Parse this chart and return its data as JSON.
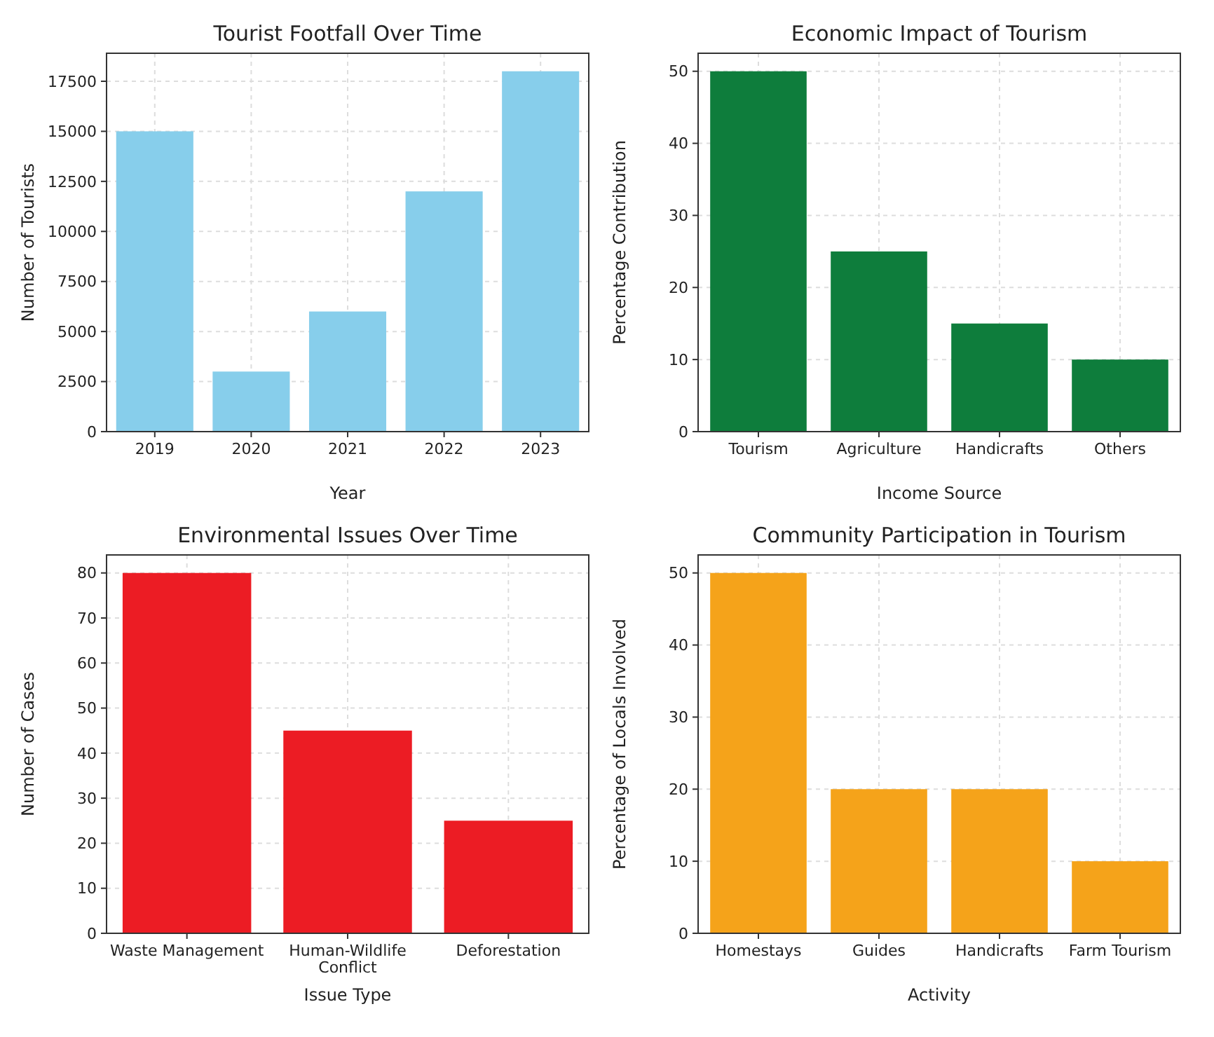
{
  "chart_data": [
    {
      "type": "bar",
      "title": "Tourist Footfall Over Time",
      "xlabel": "Year",
      "ylabel": "Number of Tourists",
      "categories": [
        "2019",
        "2020",
        "2021",
        "2022",
        "2023"
      ],
      "values": [
        15000,
        3000,
        6000,
        12000,
        18000
      ],
      "color": "#87ceeb",
      "ylim": [
        0,
        18900
      ],
      "yticks": [
        0,
        2500,
        5000,
        7500,
        10000,
        12500,
        15000,
        17500
      ],
      "grid": true
    },
    {
      "type": "bar",
      "title": "Economic Impact of Tourism",
      "xlabel": "Income Source",
      "ylabel": "Percentage Contribution",
      "categories": [
        "Tourism",
        "Agriculture",
        "Handicrafts",
        "Others"
      ],
      "values": [
        50,
        25,
        15,
        10
      ],
      "color": "#0e7d3c",
      "ylim": [
        0,
        52.5
      ],
      "yticks": [
        0,
        10,
        20,
        30,
        40,
        50
      ],
      "grid": true
    },
    {
      "type": "bar",
      "title": "Environmental Issues Over Time",
      "xlabel": "Issue Type",
      "ylabel": "Number of Cases",
      "categories": [
        "Waste Management",
        "Human-Wildlife Conflict",
        "Deforestation"
      ],
      "values": [
        80,
        45,
        25
      ],
      "color": "#ec1c24",
      "ylim": [
        0,
        84
      ],
      "yticks": [
        0,
        10,
        20,
        30,
        40,
        50,
        60,
        70,
        80
      ],
      "grid": true
    },
    {
      "type": "bar",
      "title": "Community Participation in Tourism",
      "xlabel": "Activity",
      "ylabel": "Percentage of Locals Involved",
      "categories": [
        "Homestays",
        "Guides",
        "Handicrafts",
        "Farm Tourism"
      ],
      "values": [
        50,
        20,
        20,
        10
      ],
      "color": "#f5a31a",
      "ylim": [
        0,
        52.5
      ],
      "yticks": [
        0,
        10,
        20,
        30,
        40,
        50
      ],
      "grid": true
    }
  ]
}
